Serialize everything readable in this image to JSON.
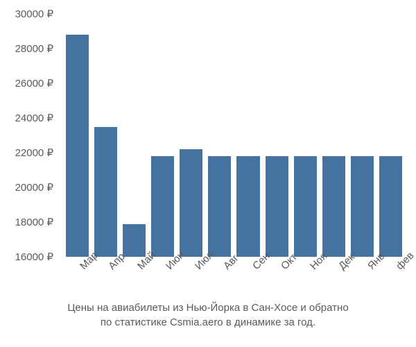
{
  "chart": {
    "type": "bar",
    "categories": [
      "Мар",
      "Апр",
      "Май",
      "Июн",
      "Июл",
      "Авг",
      "Сен",
      "Окт",
      "Ноя",
      "Дек",
      "Янв",
      "фев"
    ],
    "values": [
      28800,
      23500,
      17900,
      21800,
      22200,
      21800,
      21800,
      21800,
      21800,
      21800,
      21800,
      21800
    ],
    "bar_color": "#4573a0",
    "background_color": "#ffffff",
    "ylim_min": 16000,
    "ylim_max": 30000,
    "ytick_step": 2000,
    "y_ticks": [
      16000,
      18000,
      20000,
      22000,
      24000,
      26000,
      28000,
      30000
    ],
    "y_tick_labels": [
      "16000 ₽",
      "18000 ₽",
      "20000 ₽",
      "22000 ₽",
      "24000 ₽",
      "26000 ₽",
      "28000 ₽",
      "30000 ₽"
    ],
    "y_label_color": "#5a5a5a",
    "x_label_color": "#5a5a5a",
    "label_fontsize": 15,
    "caption_fontsize": 15,
    "x_label_rotation": -45,
    "bar_gap": 8
  },
  "caption": {
    "line1": "Цены на авиабилеты из Нью-Йорка в Сан-Хосе и обратно",
    "line2": "по статистике Csmia.aero в динамике за год."
  }
}
